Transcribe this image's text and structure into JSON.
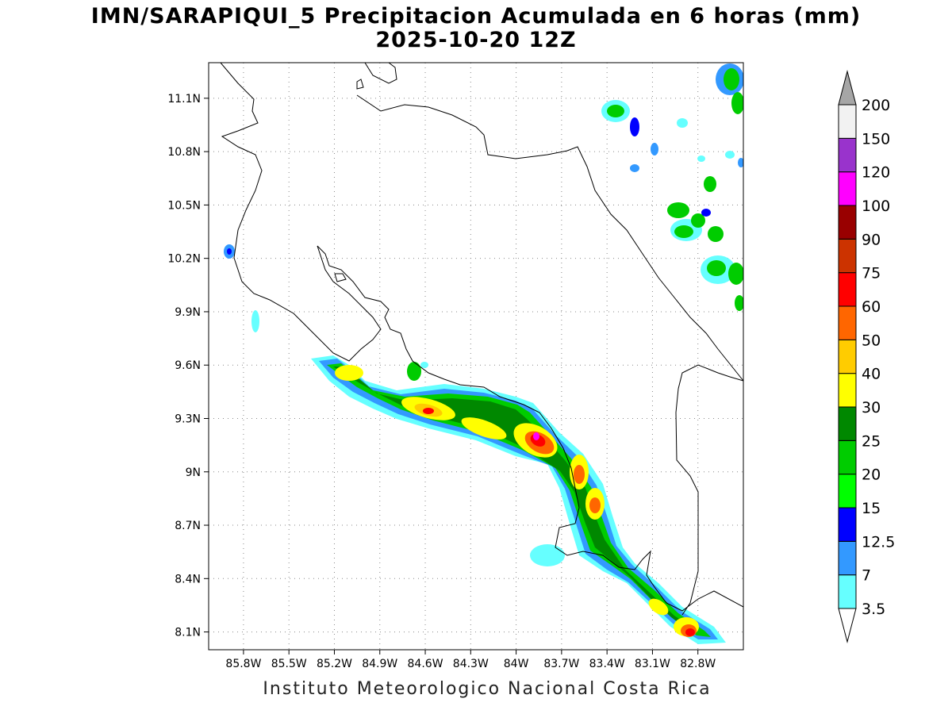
{
  "title": {
    "line1": "IMN/SARAPIQUI_5 Precipitacion Acumulada en 6 horas (mm)",
    "line2": "2025-10-20 12Z"
  },
  "footer": "Instituto Meteorologico Nacional Costa Rica",
  "map": {
    "lon_range": [
      -86.03,
      -82.5
    ],
    "lat_range": [
      8.0,
      11.3
    ],
    "lat_ticks": [
      {
        "value": 11.1,
        "label": "11.1N"
      },
      {
        "value": 10.8,
        "label": "10.8N"
      },
      {
        "value": 10.5,
        "label": "10.5N"
      },
      {
        "value": 10.2,
        "label": "10.2N"
      },
      {
        "value": 9.9,
        "label": "9.9N"
      },
      {
        "value": 9.6,
        "label": "9.6N"
      },
      {
        "value": 9.3,
        "label": "9.3N"
      },
      {
        "value": 9.0,
        "label": "9N"
      },
      {
        "value": 8.7,
        "label": "8.7N"
      },
      {
        "value": 8.4,
        "label": "8.4N"
      },
      {
        "value": 8.1,
        "label": "8.1N"
      }
    ],
    "lon_ticks": [
      {
        "value": -85.8,
        "label": "85.8W"
      },
      {
        "value": -85.5,
        "label": "85.5W"
      },
      {
        "value": -85.2,
        "label": "85.2W"
      },
      {
        "value": -84.9,
        "label": "84.9W"
      },
      {
        "value": -84.6,
        "label": "84.6W"
      },
      {
        "value": -84.3,
        "label": "84.3W"
      },
      {
        "value": -84.0,
        "label": "84W"
      },
      {
        "value": -83.7,
        "label": "83.7W"
      },
      {
        "value": -83.4,
        "label": "83.4W"
      },
      {
        "value": -83.1,
        "label": "83.1W"
      },
      {
        "value": -82.8,
        "label": "82.8W"
      }
    ],
    "grid": true
  },
  "colorbar": {
    "levels": [
      "3.5",
      "7",
      "12.5",
      "15",
      "20",
      "25",
      "30",
      "40",
      "50",
      "60",
      "75",
      "90",
      "100",
      "120",
      "150",
      "200"
    ],
    "colors": [
      "#66ffff",
      "#3399ff",
      "#0000ff",
      "#00ff00",
      "#00cc00",
      "#008800",
      "#ffff00",
      "#ffcc00",
      "#ff6600",
      "#ff0000",
      "#cc3300",
      "#990000",
      "#ff00ff",
      "#9933cc",
      "#f2f2f2"
    ],
    "above_color": "#a6a6a6",
    "below_color": "#ffffff"
  }
}
